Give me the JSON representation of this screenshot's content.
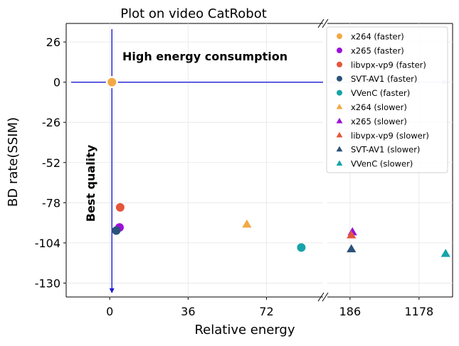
{
  "chart_data": {
    "type": "scatter",
    "title": "Plot on video CatRobot",
    "xlabel": "Relative energy",
    "ylabel": "BD rate(SSIM)",
    "x_axis": {
      "broken": true,
      "segments": [
        {
          "range": [
            -20,
            98
          ],
          "ticks": [
            0,
            36,
            72
          ],
          "tick_labels": [
            "0",
            "36",
            "72"
          ]
        },
        {
          "range": [
            -140,
            1660
          ],
          "ticks": [
            186,
            1178
          ],
          "tick_labels": [
            "186",
            "1178"
          ]
        }
      ]
    },
    "y_axis": {
      "range": [
        -139,
        38
      ],
      "ticks": [
        26,
        0,
        -26,
        -52,
        -78,
        -104,
        -130
      ],
      "tick_labels": [
        "26",
        "0",
        "-26",
        "-52",
        "-78",
        "-104",
        "-130"
      ]
    },
    "grid": true,
    "legend_position": "top-right",
    "annotations": [
      {
        "text": "High energy consumption",
        "x": 5,
        "y": 15
      },
      {
        "text": "Best quality",
        "rotation": -90
      }
    ],
    "reference_point": {
      "x": 1,
      "y": 0
    },
    "series": [
      {
        "name": "x264 (faster)",
        "marker": "circle",
        "color": "#f2a945",
        "segment": 0,
        "points": [
          [
            1,
            0
          ]
        ]
      },
      {
        "name": "x265 (faster)",
        "marker": "circle",
        "color": "#9b10d8",
        "segment": 0,
        "points": [
          [
            4.5,
            -94
          ]
        ]
      },
      {
        "name": "libvpx-vp9 (faster)",
        "marker": "circle",
        "color": "#e4553b",
        "segment": 0,
        "points": [
          [
            4.8,
            -81
          ]
        ]
      },
      {
        "name": "SVT-AV1 (faster)",
        "marker": "circle",
        "color": "#2b5278",
        "segment": 0,
        "points": [
          [
            3,
            -96
          ]
        ]
      },
      {
        "name": "VVenC (faster)",
        "marker": "circle",
        "color": "#16a3a9",
        "segment": 0,
        "points": [
          [
            88,
            -107
          ]
        ]
      },
      {
        "name": "x264 (slower)",
        "marker": "triangle",
        "color": "#f2a945",
        "segment": 0,
        "points": [
          [
            63,
            -92
          ]
        ]
      },
      {
        "name": "x265 (slower)",
        "marker": "triangle",
        "color": "#9b10d8",
        "segment": 1,
        "points": [
          [
            220,
            -97
          ]
        ]
      },
      {
        "name": "libvpx-vp9 (slower)",
        "marker": "triangle",
        "color": "#e4553b",
        "segment": 1,
        "points": [
          [
            205,
            -99
          ]
        ]
      },
      {
        "name": "SVT-AV1 (slower)",
        "marker": "triangle",
        "color": "#2b5278",
        "segment": 1,
        "points": [
          [
            205,
            -108
          ]
        ]
      },
      {
        "name": "VVenC (slower)",
        "marker": "triangle",
        "color": "#16a3a9",
        "segment": 1,
        "points": [
          [
            1560,
            -111
          ]
        ]
      }
    ]
  }
}
